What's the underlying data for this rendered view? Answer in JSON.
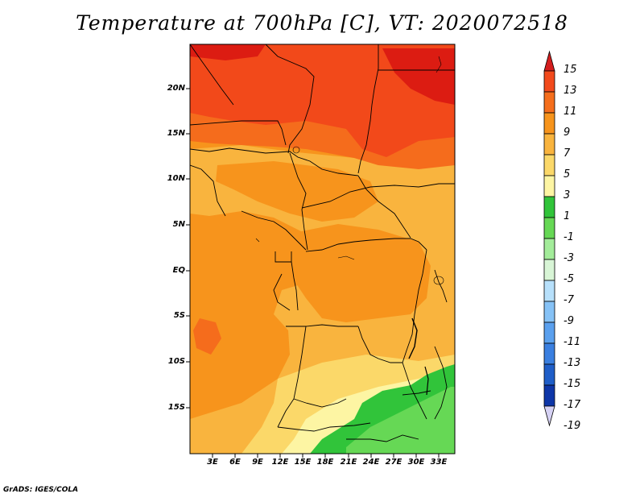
{
  "title": "Temperature at 700hPa [C], VT: 2020072518",
  "credit": "GrADS: IGES/COLA",
  "lat_labels": [
    "20N",
    "15N",
    "10N",
    "5N",
    "EQ",
    "5S",
    "10S",
    "15S"
  ],
  "lon_labels": [
    "3E",
    "6E",
    "9E",
    "12E",
    "15E",
    "18E",
    "21E",
    "24E",
    "27E",
    "30E",
    "33E"
  ],
  "legend": {
    "labels": [
      "15",
      "13",
      "11",
      "9",
      "7",
      "5",
      "3",
      "1",
      "-1",
      "-3",
      "-5",
      "-7",
      "-9",
      "-11",
      "-13",
      "-15",
      "-17",
      "-19"
    ],
    "colors": [
      "#e8281c",
      "#f24a1c",
      "#f56e1c",
      "#f7941c",
      "#f9b43e",
      "#fbd869",
      "#fdf5a3",
      "#31c43a",
      "#66d855",
      "#a3ec9a",
      "#d8f5d6",
      "#b7e0fb",
      "#86c2f6",
      "#5aa0ee",
      "#3a7fe0",
      "#1f5ec8",
      "#0e36a8",
      "#07127a"
    ],
    "top_arrow_color": "#d41e1e",
    "bottom_arrow_color": "#d6d2f4"
  },
  "map_colors": {
    "warmest": "#dc1c12",
    "very_warm": "#f2491a",
    "warm": "#f56c1c",
    "mid": "#f7941c",
    "mild": "#f9b43e",
    "cool": "#fbd869",
    "coolest": "#fdf5a3",
    "green": "#31c43a",
    "light_green": "#66d855"
  }
}
